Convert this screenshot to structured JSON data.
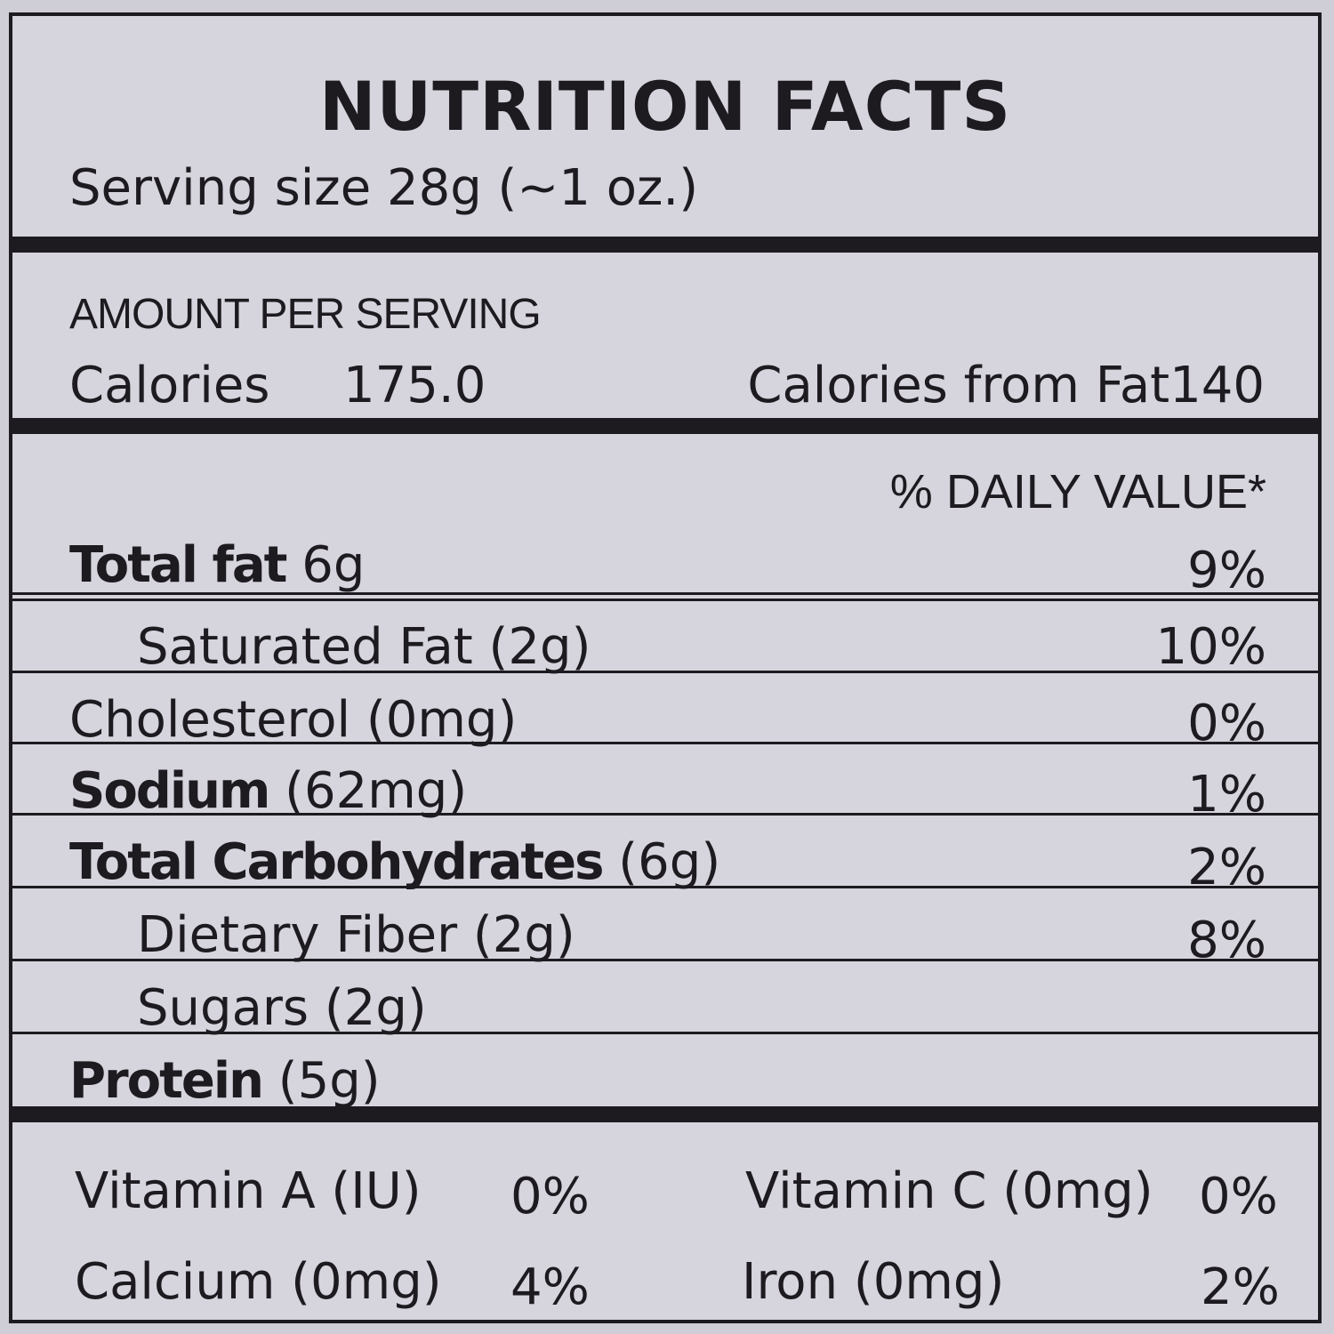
{
  "title": "NUTRITION FACTS",
  "serving_size": "Serving size 28g (~1 oz.)",
  "amount_header": "AMOUNT PER SERVING",
  "calories": {
    "label": "Calories",
    "value": "175.0",
    "from_fat": "Calories from Fat140"
  },
  "daily_value_header": "% DAILY VALUE*",
  "rows": [
    {
      "bold": "Total fat",
      "rest": " 6g",
      "pct": "9%"
    },
    {
      "bold": "",
      "rest": "Saturated Fat (2g)",
      "pct": "10%"
    },
    {
      "bold": "",
      "rest": "Cholesterol (0mg)",
      "pct": "0%"
    },
    {
      "bold": "Sodium",
      "rest": " (62mg)",
      "pct": "1%"
    },
    {
      "bold": "Total Carbohydrates",
      "rest": " (6g)",
      "pct": "2%"
    },
    {
      "bold": "",
      "rest": "Dietary Fiber (2g)",
      "pct": "8%"
    },
    {
      "bold": "",
      "rest": "Sugars (2g)",
      "pct": ""
    },
    {
      "bold": "Protein",
      "rest": " (5g)",
      "pct": ""
    }
  ],
  "vitamins": [
    {
      "name": "Vitamin A (IU)",
      "pct": "0%"
    },
    {
      "name": "Vitamin C (0mg)",
      "pct": "0%"
    },
    {
      "name": "Calcium (0mg)",
      "pct": "4%"
    },
    {
      "name": "Iron (0mg)",
      "pct": "2%"
    }
  ]
}
